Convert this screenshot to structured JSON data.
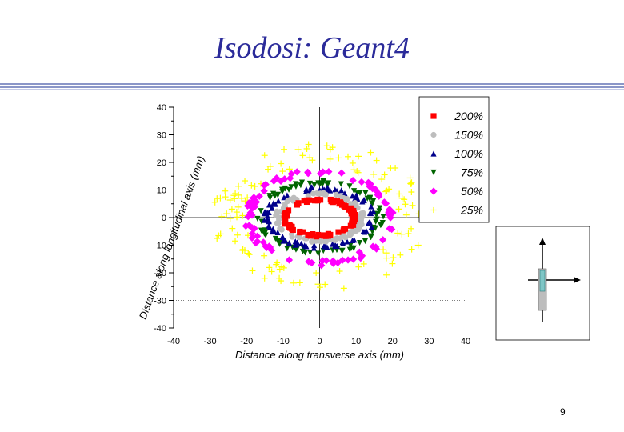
{
  "slide": {
    "title": "Isodosi: Geant4",
    "page_number": "9"
  },
  "colors": {
    "title": "#2b2b9a",
    "rule": "#8b96c8",
    "dose_200": "#ff0000",
    "dose_150": "#bdbdbd",
    "dose_100": "#00008b",
    "dose_75": "#006400",
    "dose_50": "#ff00ff",
    "dose_25": "#ffff00"
  },
  "chart_data": {
    "type": "scatter",
    "title": "",
    "xlabel": "Distance along transverse axis (mm)",
    "ylabel": "Distance along longitudinal axis (mm)",
    "xlim": [
      -40,
      40
    ],
    "ylim": [
      -40,
      40
    ],
    "x_ticks": [
      "-40",
      "-30",
      "-20",
      "-10",
      "0",
      "10",
      "20",
      "30",
      "40"
    ],
    "y_ticks": [
      "40",
      "30",
      "20",
      "10",
      "0",
      "-10",
      "-20",
      "-30",
      "-40"
    ],
    "grid": false,
    "legend_position": "top-right",
    "series": [
      {
        "name": "200%",
        "marker": "square",
        "color": "#ff0000",
        "radius_x": 9.5,
        "radius_y": 6.5
      },
      {
        "name": "150%",
        "marker": "circle",
        "color": "#bdbdbd",
        "radius_x": 11.5,
        "radius_y": 8.5
      },
      {
        "name": "100%",
        "marker": "triangle-up",
        "color": "#00008b",
        "radius_x": 14.5,
        "radius_y": 10.5
      },
      {
        "name": "75%",
        "marker": "triangle-down",
        "color": "#006400",
        "radius_x": 16.5,
        "radius_y": 12.5
      },
      {
        "name": "50%",
        "marker": "diamond",
        "color": "#ff00ff",
        "radius_x": 19.5,
        "radius_y": 16.5
      },
      {
        "name": "25%",
        "marker": "plus",
        "color": "#ffff00",
        "radius_x": 25,
        "radius_y": 23
      }
    ]
  }
}
